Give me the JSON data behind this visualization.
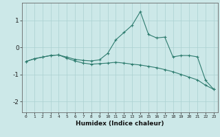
{
  "xlabel": "Humidex (Indice chaleur)",
  "x": [
    0,
    1,
    2,
    3,
    4,
    5,
    6,
    7,
    8,
    9,
    10,
    11,
    12,
    13,
    14,
    15,
    16,
    17,
    18,
    19,
    20,
    21,
    22,
    23
  ],
  "line1": [
    -0.52,
    -0.42,
    -0.36,
    -0.3,
    -0.28,
    -0.36,
    -0.44,
    -0.48,
    -0.5,
    -0.46,
    -0.22,
    0.28,
    0.55,
    0.82,
    1.32,
    0.48,
    0.35,
    0.38,
    -0.35,
    -0.3,
    -0.3,
    -0.35,
    -1.22,
    -1.55
  ],
  "line2": [
    -0.52,
    -0.42,
    -0.36,
    -0.3,
    -0.28,
    -0.4,
    -0.5,
    -0.58,
    -0.62,
    -0.6,
    -0.58,
    -0.55,
    -0.58,
    -0.62,
    -0.65,
    -0.7,
    -0.75,
    -0.82,
    -0.9,
    -1.0,
    -1.1,
    -1.2,
    -1.4,
    -1.55
  ],
  "bg_color": "#cce8e8",
  "grid_color": "#aad0d0",
  "line_color": "#2d7b6e",
  "xlim_min": -0.5,
  "xlim_max": 23.5,
  "ylim_min": -2.4,
  "ylim_max": 1.65,
  "yticks": [
    -2,
    -1,
    0,
    1
  ],
  "xticks": [
    0,
    1,
    2,
    3,
    4,
    5,
    6,
    7,
    8,
    9,
    10,
    11,
    12,
    13,
    14,
    15,
    16,
    17,
    18,
    19,
    20,
    21,
    22,
    23
  ]
}
